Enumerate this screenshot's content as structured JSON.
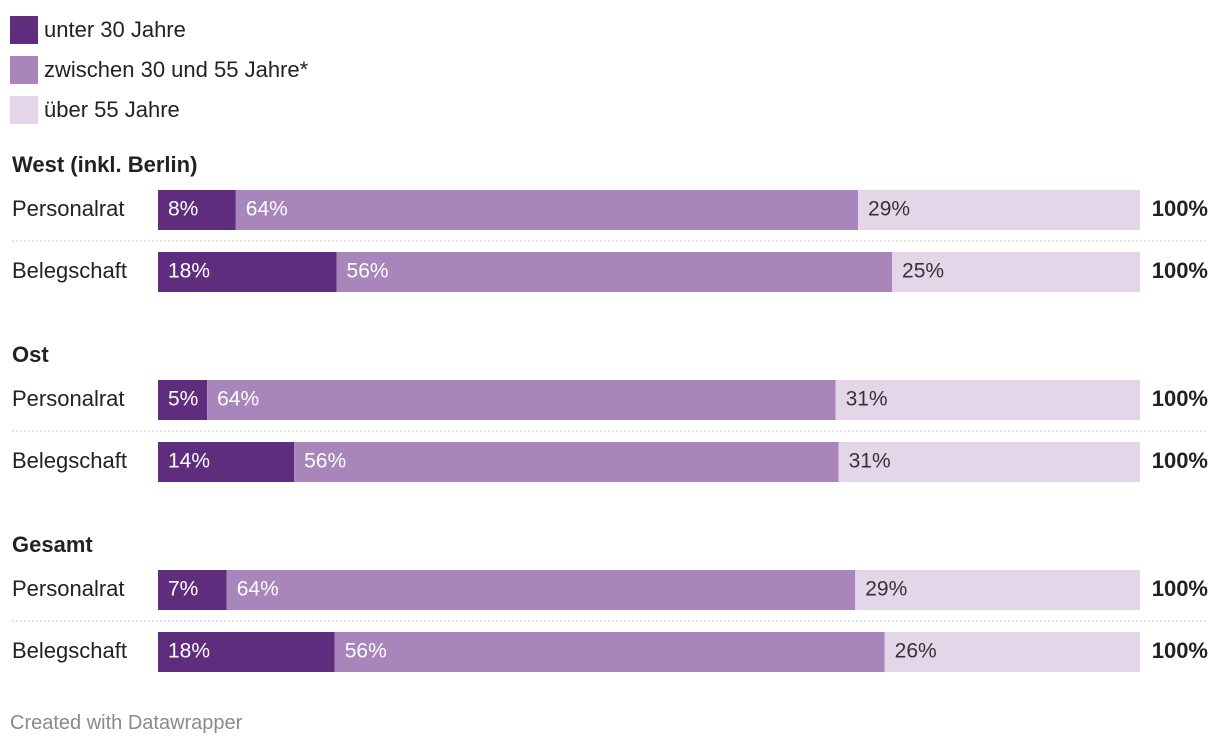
{
  "chart_data": {
    "type": "bar",
    "orientation": "horizontal-stacked",
    "series": [
      {
        "name": "unter 30 Jahre",
        "color": "#5f2d7d"
      },
      {
        "name": "zwischen 30 und 55 Jahre*",
        "color": "#a886bb"
      },
      {
        "name": "über 55 Jahre",
        "color": "#e3d6e9"
      }
    ],
    "groups": [
      {
        "title": "West (inkl. Berlin)",
        "rows": [
          {
            "label": "Personalrat",
            "values": [
              8,
              64,
              29
            ],
            "labels": [
              "8%",
              "64%",
              "29%"
            ],
            "total": "100%"
          },
          {
            "label": "Belegschaft",
            "values": [
              18,
              56,
              25
            ],
            "labels": [
              "18%",
              "56%",
              "25%"
            ],
            "total": "100%"
          }
        ]
      },
      {
        "title": "Ost",
        "rows": [
          {
            "label": "Personalrat",
            "values": [
              5,
              64,
              31
            ],
            "labels": [
              "5%",
              "64%",
              "31%"
            ],
            "total": "100%"
          },
          {
            "label": "Belegschaft",
            "values": [
              14,
              56,
              31
            ],
            "labels": [
              "14%",
              "56%",
              "31%"
            ],
            "total": "100%"
          }
        ]
      },
      {
        "title": "Gesamt",
        "rows": [
          {
            "label": "Personalrat",
            "values": [
              7,
              64,
              29
            ],
            "labels": [
              "7%",
              "64%",
              "29%"
            ],
            "total": "100%"
          },
          {
            "label": "Belegschaft",
            "values": [
              18,
              56,
              26
            ],
            "labels": [
              "18%",
              "56%",
              "26%"
            ],
            "total": "100%"
          }
        ]
      }
    ],
    "xlim": [
      0,
      100
    ],
    "legend_placement": "top-left"
  },
  "footer": {
    "credit": "Created with Datawrapper"
  }
}
